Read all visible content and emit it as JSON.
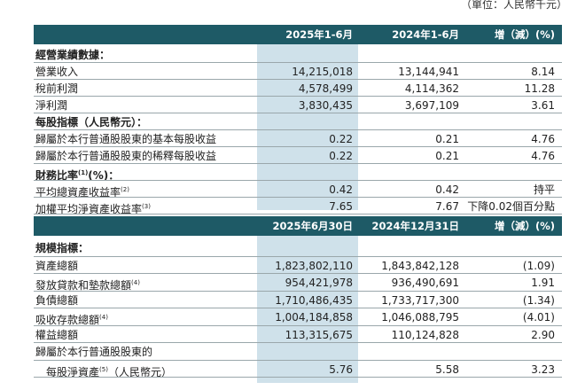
{
  "unit_note": "（單位：人民幣千元）",
  "table1": {
    "headers": [
      "2025年1-6月",
      "2024年1-6月",
      "增（減）(%)"
    ],
    "rows": [
      {
        "label": "經營業績數據：",
        "type": "section",
        "v": [
          "",
          "",
          ""
        ]
      },
      {
        "label": "營業收入",
        "type": "data",
        "v": [
          "14,215,018",
          "13,144,941",
          "8.14"
        ]
      },
      {
        "label": "稅前利潤",
        "type": "data",
        "v": [
          "4,578,499",
          "4,114,362",
          "11.28"
        ]
      },
      {
        "label": "淨利潤",
        "type": "data",
        "v": [
          "3,830,435",
          "3,697,109",
          "3.61"
        ]
      },
      {
        "label": "每股指標（人民幣元）：",
        "type": "section",
        "v": [
          "",
          "",
          ""
        ]
      },
      {
        "label": "歸屬於本行普通股股東的基本每股收益",
        "type": "data",
        "v": [
          "0.22",
          "0.21",
          "4.76"
        ]
      },
      {
        "label": "歸屬於本行普通股股東的稀釋每股收益",
        "type": "data",
        "v": [
          "0.22",
          "0.21",
          "4.76"
        ]
      },
      {
        "label": "財務比率",
        "sup": "(1)",
        "suffix": "(%)：",
        "type": "section",
        "v": [
          "",
          "",
          ""
        ]
      },
      {
        "label": "平均總資產收益率",
        "sup": "(2)",
        "type": "data",
        "v": [
          "0.42",
          "0.42",
          "持平"
        ]
      },
      {
        "label": "加權平均淨資產收益率",
        "sup": "(3)",
        "type": "data",
        "v": [
          "7.65",
          "7.67",
          "下降0.02個百分點"
        ]
      }
    ]
  },
  "table2": {
    "headers": [
      "2025年6月30日",
      "2024年12月31日",
      "增（減）(%)"
    ],
    "rows": [
      {
        "label": "規模指標：",
        "type": "section",
        "v": [
          "",
          "",
          ""
        ]
      },
      {
        "label": "資產總額",
        "type": "data",
        "v": [
          "1,823,802,110",
          "1,843,842,128",
          "(1.09)"
        ]
      },
      {
        "label": "發放貸款和墊款總額",
        "sup": "(4)",
        "type": "data",
        "v": [
          "954,421,978",
          "936,490,691",
          "1.91"
        ]
      },
      {
        "label": "負債總額",
        "type": "data",
        "v": [
          "1,710,486,435",
          "1,733,717,300",
          "(1.34)"
        ]
      },
      {
        "label": "吸收存款總額",
        "sup": "(4)",
        "type": "data",
        "v": [
          "1,004,184,858",
          "1,046,088,795",
          "(4.01)"
        ]
      },
      {
        "label": "權益總額",
        "type": "data",
        "v": [
          "113,315,675",
          "110,124,828",
          "2.90"
        ]
      },
      {
        "label": "歸屬於本行普通股股東的",
        "type": "data",
        "v": [
          "",
          "",
          ""
        ]
      },
      {
        "label": "每股淨資產",
        "sup": "(5)",
        "suffix": "（人民幣元）",
        "type": "indent",
        "v": [
          "5.76",
          "5.58",
          "3.23"
        ]
      }
    ]
  }
}
